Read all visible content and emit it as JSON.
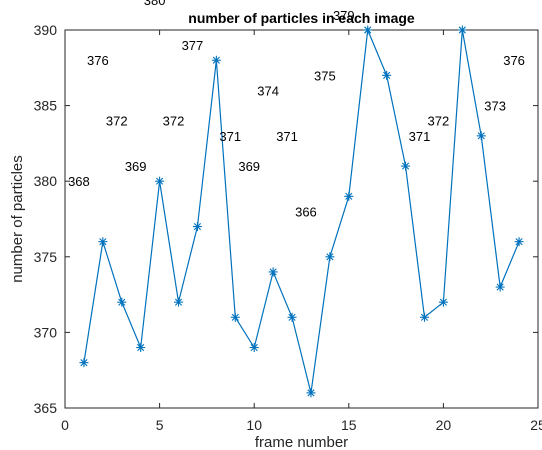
{
  "chart_data": {
    "type": "line",
    "title": "number of particles in each image",
    "xlabel": "frame number",
    "ylabel": "number of particles",
    "xlim": [
      0,
      25
    ],
    "ylim": [
      365,
      390
    ],
    "xticks": [
      0,
      5,
      10,
      15,
      20,
      25
    ],
    "yticks": [
      365,
      370,
      375,
      380,
      385,
      390
    ],
    "grid": false,
    "marker": "*",
    "series": [
      {
        "color": "#0072BD",
        "x": [
          1,
          2,
          3,
          4,
          5,
          6,
          7,
          8,
          9,
          10,
          11,
          12,
          13,
          14,
          15,
          16,
          17,
          18,
          19,
          20,
          21,
          22,
          23,
          24
        ],
        "values": [
          368,
          376,
          372,
          369,
          380,
          372,
          377,
          388,
          371,
          369,
          374,
          371,
          366,
          375,
          379,
          390,
          387,
          381,
          371,
          372,
          390,
          383,
          373,
          376
        ]
      }
    ]
  }
}
